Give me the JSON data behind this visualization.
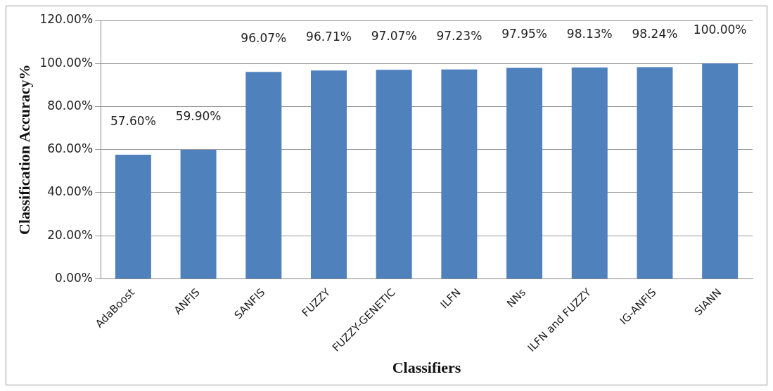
{
  "chart_data": {
    "type": "bar",
    "xlabel": "Classifiers",
    "ylabel": "Classification Accuracy%",
    "categories": [
      "AdaBoost",
      "ANFIS",
      "SANFIS",
      "FUZZY",
      "FUZZY-GENETIC",
      "ILFN",
      "NNs",
      "ILFN and FUZZY",
      "IG-ANFIS",
      "SIANN"
    ],
    "values": [
      57.6,
      59.9,
      96.07,
      96.71,
      97.07,
      97.23,
      97.95,
      98.13,
      98.24,
      100.0
    ],
    "value_labels": [
      "57.60%",
      "59.90%",
      "96.07%",
      "96.71%",
      "97.07%",
      "97.23%",
      "97.95%",
      "98.13%",
      "98.24%",
      "100.00%"
    ],
    "color": "#4f81bd",
    "ylim": [
      0,
      120
    ],
    "yticks": [
      {
        "value": 0,
        "label": "0.00%"
      },
      {
        "value": 20,
        "label": "20.00%"
      },
      {
        "value": 40,
        "label": "40.00%"
      },
      {
        "value": 60,
        "label": "60.00%"
      },
      {
        "value": 80,
        "label": "80.00%"
      },
      {
        "value": 100,
        "label": "100.00%"
      },
      {
        "value": 120,
        "label": "120.00%"
      }
    ],
    "grid": "y",
    "legend": false
  }
}
